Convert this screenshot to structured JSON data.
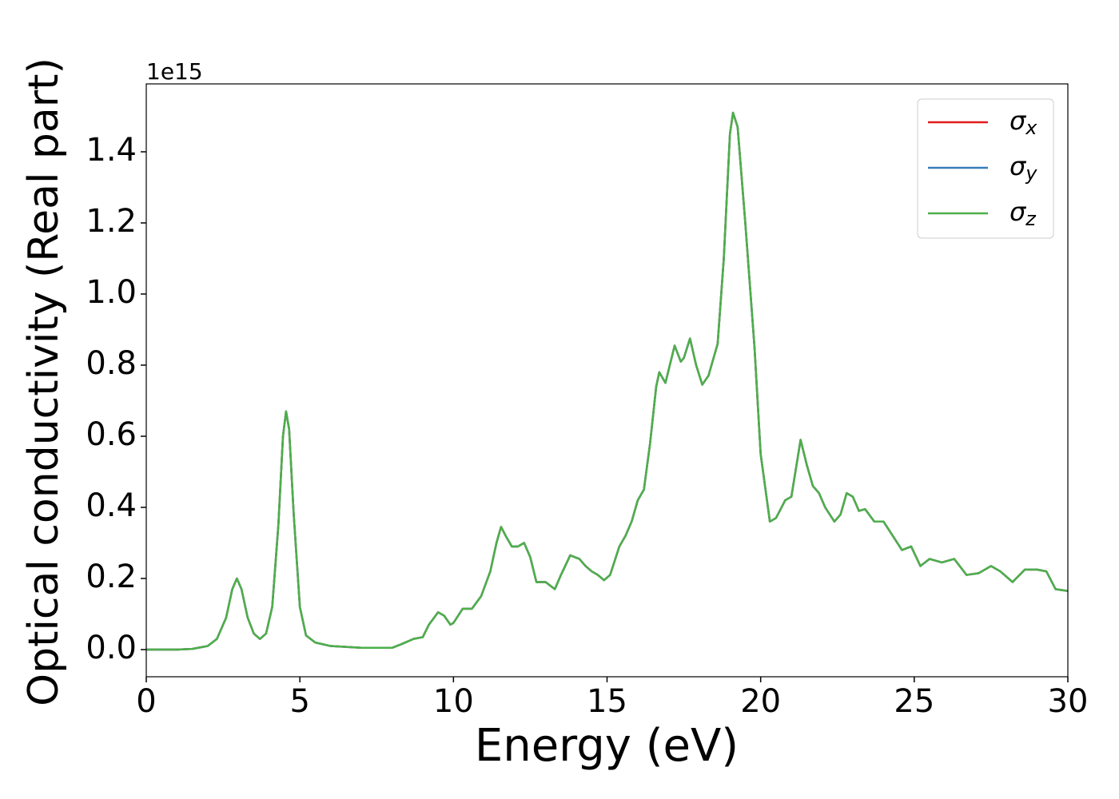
{
  "chart_data": {
    "type": "line",
    "xlabel": "Energy (eV)",
    "ylabel": "Optical conductivity (Real part)",
    "offset_text": "1e15",
    "x": [
      0,
      1,
      1.5,
      2,
      2.3,
      2.6,
      2.8,
      2.95,
      3.1,
      3.3,
      3.5,
      3.7,
      3.9,
      4.1,
      4.3,
      4.45,
      4.55,
      4.65,
      4.8,
      5.0,
      5.2,
      5.5,
      6,
      7,
      8,
      8.3,
      8.7,
      9.0,
      9.2,
      9.5,
      9.7,
      9.9,
      10.0,
      10.3,
      10.6,
      10.9,
      11.2,
      11.4,
      11.55,
      11.7,
      11.9,
      12.1,
      12.3,
      12.5,
      12.7,
      13.0,
      13.3,
      13.5,
      13.8,
      14.1,
      14.3,
      14.5,
      14.7,
      14.9,
      15.1,
      15.4,
      15.6,
      15.8,
      16.0,
      16.2,
      16.4,
      16.6,
      16.7,
      16.9,
      17.2,
      17.4,
      17.5,
      17.7,
      17.9,
      18.1,
      18.3,
      18.6,
      18.8,
      19.0,
      19.1,
      19.25,
      19.5,
      19.8,
      20.0,
      20.3,
      20.5,
      20.8,
      21.0,
      21.3,
      21.5,
      21.7,
      21.9,
      22.1,
      22.4,
      22.6,
      22.8,
      23.0,
      23.2,
      23.4,
      23.7,
      24.0,
      24.3,
      24.6,
      24.9,
      25.2,
      25.5,
      25.9,
      26.3,
      26.7,
      27.1,
      27.5,
      27.8,
      28.2,
      28.6,
      29.0,
      29.3,
      29.6,
      30.0
    ],
    "series": [
      {
        "name": "σx",
        "color": "#e41a1c",
        "values": [
          0,
          0,
          0.002,
          0.01,
          0.03,
          0.09,
          0.17,
          0.2,
          0.17,
          0.09,
          0.045,
          0.03,
          0.045,
          0.12,
          0.35,
          0.6,
          0.67,
          0.62,
          0.38,
          0.12,
          0.04,
          0.02,
          0.01,
          0.005,
          0.005,
          0.015,
          0.03,
          0.035,
          0.07,
          0.105,
          0.095,
          0.07,
          0.075,
          0.115,
          0.115,
          0.15,
          0.22,
          0.3,
          0.345,
          0.32,
          0.29,
          0.29,
          0.3,
          0.26,
          0.19,
          0.19,
          0.17,
          0.21,
          0.265,
          0.255,
          0.235,
          0.22,
          0.21,
          0.195,
          0.21,
          0.29,
          0.32,
          0.36,
          0.42,
          0.45,
          0.58,
          0.74,
          0.78,
          0.75,
          0.855,
          0.81,
          0.82,
          0.875,
          0.8,
          0.745,
          0.77,
          0.86,
          1.1,
          1.45,
          1.51,
          1.47,
          1.2,
          0.85,
          0.55,
          0.36,
          0.37,
          0.42,
          0.43,
          0.59,
          0.52,
          0.46,
          0.44,
          0.4,
          0.36,
          0.38,
          0.44,
          0.43,
          0.39,
          0.395,
          0.36,
          0.36,
          0.32,
          0.28,
          0.29,
          0.235,
          0.255,
          0.245,
          0.255,
          0.21,
          0.215,
          0.235,
          0.22,
          0.19,
          0.225,
          0.225,
          0.22,
          0.17,
          0.165
        ]
      },
      {
        "name": "σy",
        "color": "#377eb8",
        "values": [
          0,
          0,
          0.002,
          0.01,
          0.03,
          0.09,
          0.17,
          0.2,
          0.17,
          0.09,
          0.045,
          0.03,
          0.045,
          0.12,
          0.35,
          0.6,
          0.67,
          0.62,
          0.38,
          0.12,
          0.04,
          0.02,
          0.01,
          0.005,
          0.005,
          0.015,
          0.03,
          0.035,
          0.07,
          0.105,
          0.095,
          0.07,
          0.075,
          0.115,
          0.115,
          0.15,
          0.22,
          0.3,
          0.345,
          0.32,
          0.29,
          0.29,
          0.3,
          0.26,
          0.19,
          0.19,
          0.17,
          0.21,
          0.265,
          0.255,
          0.235,
          0.22,
          0.21,
          0.195,
          0.21,
          0.29,
          0.32,
          0.36,
          0.42,
          0.45,
          0.58,
          0.74,
          0.78,
          0.75,
          0.855,
          0.81,
          0.82,
          0.875,
          0.8,
          0.745,
          0.77,
          0.86,
          1.1,
          1.45,
          1.51,
          1.47,
          1.2,
          0.85,
          0.55,
          0.36,
          0.37,
          0.42,
          0.43,
          0.59,
          0.52,
          0.46,
          0.44,
          0.4,
          0.36,
          0.38,
          0.44,
          0.43,
          0.39,
          0.395,
          0.36,
          0.36,
          0.32,
          0.28,
          0.29,
          0.235,
          0.255,
          0.245,
          0.255,
          0.21,
          0.215,
          0.235,
          0.22,
          0.19,
          0.225,
          0.225,
          0.22,
          0.17,
          0.165
        ]
      },
      {
        "name": "σz",
        "color": "#4daf4a",
        "values": [
          0,
          0,
          0.002,
          0.01,
          0.03,
          0.09,
          0.17,
          0.2,
          0.17,
          0.09,
          0.045,
          0.03,
          0.045,
          0.12,
          0.35,
          0.6,
          0.67,
          0.62,
          0.38,
          0.12,
          0.04,
          0.02,
          0.01,
          0.005,
          0.005,
          0.015,
          0.03,
          0.035,
          0.07,
          0.105,
          0.095,
          0.07,
          0.075,
          0.115,
          0.115,
          0.15,
          0.22,
          0.3,
          0.345,
          0.32,
          0.29,
          0.29,
          0.3,
          0.26,
          0.19,
          0.19,
          0.17,
          0.21,
          0.265,
          0.255,
          0.235,
          0.22,
          0.21,
          0.195,
          0.21,
          0.29,
          0.32,
          0.36,
          0.42,
          0.45,
          0.58,
          0.74,
          0.78,
          0.75,
          0.855,
          0.81,
          0.82,
          0.875,
          0.8,
          0.745,
          0.77,
          0.86,
          1.1,
          1.45,
          1.51,
          1.47,
          1.2,
          0.85,
          0.55,
          0.36,
          0.37,
          0.42,
          0.43,
          0.59,
          0.52,
          0.46,
          0.44,
          0.4,
          0.36,
          0.38,
          0.44,
          0.43,
          0.39,
          0.395,
          0.36,
          0.36,
          0.32,
          0.28,
          0.29,
          0.235,
          0.255,
          0.245,
          0.255,
          0.21,
          0.215,
          0.235,
          0.22,
          0.19,
          0.225,
          0.225,
          0.22,
          0.17,
          0.165
        ]
      }
    ],
    "xlim": [
      0,
      30
    ],
    "xticks": [
      0,
      5,
      10,
      15,
      20,
      25,
      30
    ],
    "ylim": [
      -0.0764,
      1.591
    ],
    "yticks": [
      {
        "value": 0,
        "label": "0.0"
      },
      0.2,
      0.4,
      0.6,
      0.8,
      {
        "value": 1,
        "label": "1.0"
      },
      1.2,
      1.4
    ],
    "grid": false,
    "legend": "upper right"
  }
}
